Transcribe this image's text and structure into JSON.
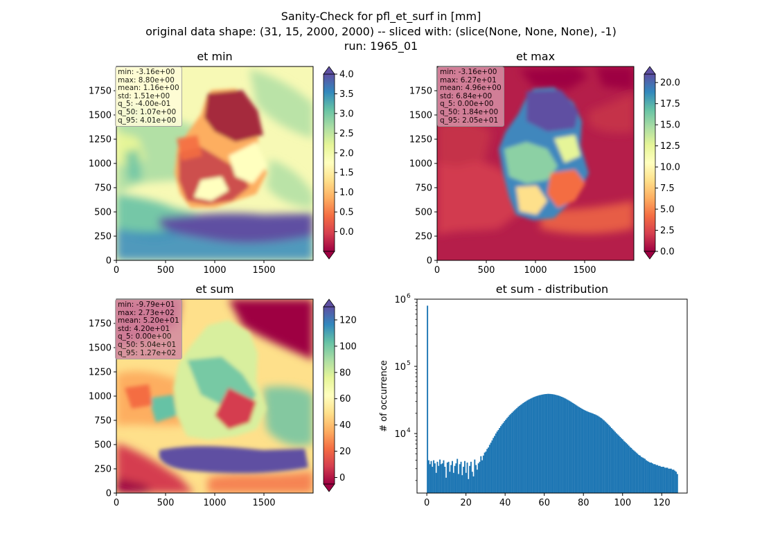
{
  "figure": {
    "title_lines": [
      "Sanity-Check for pfl_et_surf in [mm]",
      "original data shape: (31, 15, 2000, 2000) -- sliced with: (slice(None, None, None), -1)",
      "run: 1965_01"
    ]
  },
  "chart_data": [
    {
      "type": "heatmap",
      "title": "et min",
      "colormap": "Spectral",
      "x_ticks": [
        0,
        500,
        1000,
        1500
      ],
      "y_ticks": [
        0,
        250,
        500,
        750,
        1000,
        1250,
        1500,
        1750
      ],
      "xlim": [
        0,
        2000
      ],
      "ylim": [
        0,
        2000
      ],
      "colorbar": {
        "min": -0.5,
        "max": 4.0,
        "ticks": [
          "0.0",
          "0.5",
          "1.0",
          "1.5",
          "2.0",
          "2.5",
          "3.0",
          "3.5",
          "4.0"
        ],
        "extend": "both"
      },
      "stats": [
        "min: -3.16e+00",
        "max: 8.80e+00",
        "mean: 1.16e+00",
        "std: 1.51e+00",
        "q_5: -4.00e-01",
        "q_50: 1.07e+00",
        "q_95: 4.01e+00"
      ],
      "stats_box_color": "#fffdd9"
    },
    {
      "type": "heatmap",
      "title": "et max",
      "colormap": "Spectral",
      "x_ticks": [
        0,
        500,
        1000,
        1500
      ],
      "y_ticks": [
        0,
        250,
        500,
        750,
        1000,
        1250,
        1500,
        1750
      ],
      "xlim": [
        0,
        2000
      ],
      "ylim": [
        0,
        2000
      ],
      "colorbar": {
        "min": 0.0,
        "max": 21.0,
        "ticks": [
          "0.0",
          "2.5",
          "5.0",
          "7.5",
          "10.0",
          "12.5",
          "15.0",
          "17.5",
          "20.0"
        ],
        "extend": "both"
      },
      "stats": [
        "min: -3.16e+00",
        "max: 6.27e+01",
        "mean: 4.96e+00",
        "std: 6.84e+00",
        "q_5: 0.00e+00",
        "q_50: 1.84e+00",
        "q_95: 2.05e+01"
      ],
      "stats_box_color": "#d58ca2"
    },
    {
      "type": "heatmap",
      "title": "et sum",
      "colormap": "Spectral",
      "x_ticks": [
        0,
        500,
        1000,
        1500
      ],
      "y_ticks": [
        0,
        250,
        500,
        750,
        1000,
        1250,
        1500,
        1750
      ],
      "xlim": [
        0,
        2000
      ],
      "ylim": [
        0,
        2000
      ],
      "colorbar": {
        "min": -5,
        "max": 130,
        "ticks": [
          "0",
          "20",
          "40",
          "60",
          "80",
          "100",
          "120"
        ],
        "extend": "both"
      },
      "stats": [
        "min: -9.79e+01",
        "max: 2.73e+02",
        "mean: 5.20e+01",
        "std: 4.20e+01",
        "q_5: 0.00e+00",
        "q_50: 5.04e+01",
        "q_95: 1.27e+02"
      ],
      "stats_box_color": "#d58ca2"
    },
    {
      "type": "bar",
      "title": "et sum - distribution",
      "ylabel": "# of occurrence",
      "yscale": "log",
      "color": "#1f77b4",
      "xlim": [
        -5,
        133
      ],
      "ylim": [
        1300,
        1000000
      ],
      "x_ticks": [
        0,
        20,
        40,
        60,
        80,
        100,
        120
      ],
      "y_ticks": [
        {
          "value": 10000,
          "base": "10",
          "exp": "4"
        },
        {
          "value": 100000,
          "base": "10",
          "exp": "5"
        },
        {
          "value": 1000000,
          "base": "10",
          "exp": "6"
        }
      ],
      "bin_start": 0,
      "bin_width": 0.635,
      "values": [
        800000,
        4000,
        3500,
        3900,
        3200,
        4000,
        3600,
        2600,
        3800,
        3300,
        4100,
        3500,
        3600,
        4000,
        3200,
        2200,
        3700,
        3800,
        2700,
        3400,
        3900,
        2600,
        3300,
        3600,
        4200,
        2500,
        3500,
        3800,
        2400,
        3200,
        3900,
        2600,
        3700,
        2100,
        3300,
        3800,
        2700,
        2300,
        4100,
        3400,
        2900,
        3600,
        3800,
        4600,
        4000,
        4700,
        5200,
        5400,
        5900,
        6200,
        6800,
        7300,
        7900,
        8600,
        9200,
        10000,
        10700,
        11300,
        12100,
        12900,
        13700,
        14400,
        15300,
        16100,
        17000,
        17800,
        18800,
        19600,
        20400,
        21300,
        22200,
        23100,
        24000,
        25000,
        25800,
        26700,
        27500,
        28400,
        29300,
        30000,
        30900,
        31700,
        32400,
        33100,
        33800,
        34500,
        35100,
        35700,
        36200,
        36700,
        37200,
        37500,
        37900,
        38200,
        38500,
        38700,
        38800,
        39000,
        38900,
        38800,
        38600,
        38400,
        38100,
        37700,
        37300,
        36900,
        36400,
        35800,
        35200,
        34600,
        33900,
        33200,
        32400,
        31600,
        30900,
        30100,
        29300,
        28500,
        27700,
        27000,
        26200,
        25500,
        24800,
        24200,
        23600,
        23000,
        22500,
        22000,
        21600,
        21200,
        20800,
        20500,
        20200,
        19900,
        19500,
        19200,
        18800,
        18400,
        17900,
        17400,
        16900,
        16300,
        15700,
        15100,
        14500,
        13900,
        13300,
        12700,
        12100,
        11600,
        11100,
        10600,
        10100,
        9700,
        9300,
        8900,
        8500,
        8200,
        7800,
        7500,
        7200,
        6900,
        6600,
        6300,
        6100,
        5800,
        5600,
        5400,
        5200,
        5000,
        4800,
        4700,
        4500,
        4400,
        4300,
        4200,
        4000,
        3900,
        3800,
        3700,
        3700,
        3600,
        3500,
        3500,
        3400,
        3400,
        3300,
        3300,
        3200,
        3200,
        3200,
        3100,
        3100,
        3100,
        3000,
        3000,
        3000,
        2900,
        2900,
        2800,
        2700,
        2500
      ]
    }
  ]
}
